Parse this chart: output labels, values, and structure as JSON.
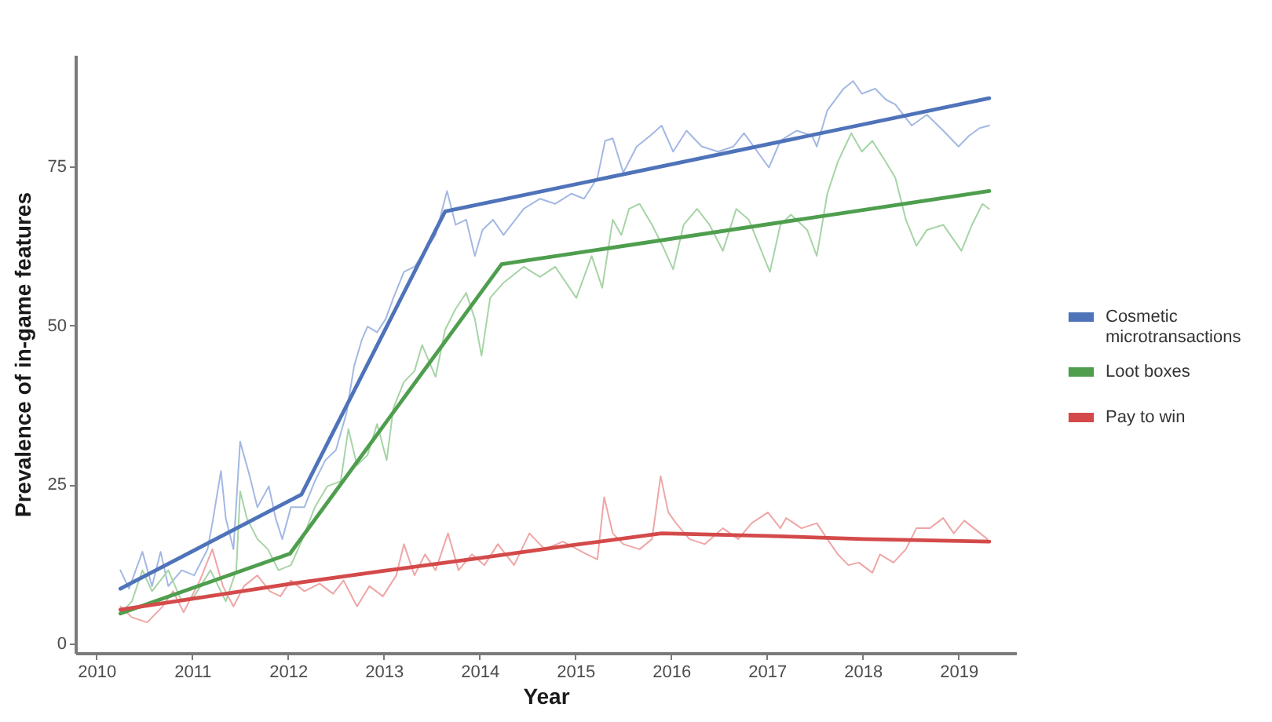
{
  "chart_data": {
    "type": "line",
    "xlabel": "Year",
    "ylabel": "Prevalence of in-game features",
    "xlim": [
      2009.78,
      2019.6
    ],
    "xticks": [
      2010,
      2011,
      2012,
      2013,
      2014,
      2015,
      2016,
      2017,
      2018,
      2019
    ],
    "ylim": [
      -1.5,
      92.5
    ],
    "yticks": [
      0,
      25,
      50,
      75
    ],
    "grid": false,
    "legend": "right",
    "series": [
      {
        "color": "#a3b8e3",
        "x": [
          2010.25,
          2010.34,
          2010.48,
          2010.58,
          2010.67,
          2010.75,
          2010.89,
          2011.02,
          2011.16,
          2011.21,
          2011.3,
          2011.35,
          2011.43,
          2011.5,
          2011.6,
          2011.68,
          2011.8,
          2011.87,
          2011.94,
          2012.03,
          2012.17,
          2012.28,
          2012.39,
          2012.5,
          2012.61,
          2012.69,
          2012.77,
          2012.83,
          2012.93,
          2013.02,
          2013.1,
          2013.21,
          2013.32,
          2013.43,
          2013.54,
          2013.66,
          2013.75,
          2013.86,
          2013.95,
          2014.03,
          2014.14,
          2014.25,
          2014.46,
          2014.63,
          2014.79,
          2014.96,
          2015.09,
          2015.23,
          2015.31,
          2015.39,
          2015.5,
          2015.64,
          2015.78,
          2015.9,
          2016.02,
          2016.16,
          2016.32,
          2016.49,
          2016.65,
          2016.76,
          2016.9,
          2017.02,
          2017.14,
          2017.31,
          2017.47,
          2017.52,
          2017.63,
          2017.8,
          2017.9,
          2017.99,
          2018.13,
          2018.24,
          2018.34,
          2018.51,
          2018.67,
          2018.84,
          2019.0,
          2019.11,
          2019.22,
          2019.32
        ],
        "values": [
          11.5,
          8.6,
          14.4,
          9.0,
          14.4,
          9.0,
          11.5,
          10.7,
          14.8,
          18.9,
          27.1,
          19.7,
          14.8,
          31.7,
          26.3,
          21.4,
          24.7,
          19.7,
          16.4,
          21.4,
          21.4,
          25.5,
          28.8,
          30.4,
          36.2,
          43.6,
          47.7,
          49.8,
          48.9,
          51.0,
          54.3,
          58.4,
          59.2,
          61.7,
          64.2,
          71.1,
          65.8,
          66.6,
          60.9,
          65.0,
          66.6,
          64.2,
          68.3,
          69.9,
          69.1,
          70.7,
          69.9,
          73.2,
          79.0,
          79.4,
          74.0,
          78.1,
          79.8,
          81.4,
          77.3,
          80.6,
          78.1,
          77.3,
          78.1,
          80.2,
          77.3,
          74.8,
          79.0,
          80.6,
          79.8,
          78.1,
          83.8,
          87.2,
          88.4,
          86.4,
          87.2,
          85.5,
          84.7,
          81.4,
          83.1,
          80.6,
          78.1,
          79.8,
          81.0,
          81.4
        ]
      },
      {
        "color": "#a6d4a6",
        "x": [
          2010.25,
          2010.37,
          2010.48,
          2010.58,
          2010.75,
          2010.89,
          2011.02,
          2011.19,
          2011.35,
          2011.46,
          2011.5,
          2011.57,
          2011.68,
          2011.79,
          2011.9,
          2012.03,
          2012.14,
          2012.28,
          2012.41,
          2012.55,
          2012.63,
          2012.72,
          2012.83,
          2012.93,
          2013.03,
          2013.1,
          2013.21,
          2013.32,
          2013.4,
          2013.54,
          2013.64,
          2013.75,
          2013.86,
          2013.95,
          2014.02,
          2014.11,
          2014.25,
          2014.46,
          2014.63,
          2014.79,
          2015.01,
          2015.17,
          2015.28,
          2015.39,
          2015.48,
          2015.56,
          2015.67,
          2015.8,
          2015.91,
          2016.02,
          2016.13,
          2016.27,
          2016.4,
          2016.54,
          2016.68,
          2016.81,
          2016.92,
          2017.03,
          2017.14,
          2017.25,
          2017.42,
          2017.52,
          2017.63,
          2017.74,
          2017.88,
          2017.99,
          2018.1,
          2018.24,
          2018.34,
          2018.45,
          2018.56,
          2018.67,
          2018.84,
          2019.03,
          2019.14,
          2019.25,
          2019.32
        ],
        "values": [
          4.7,
          6.6,
          11.5,
          8.2,
          11.5,
          6.6,
          7.4,
          11.5,
          6.6,
          11.5,
          23.9,
          19.7,
          16.4,
          14.8,
          11.5,
          12.3,
          16.0,
          21.4,
          24.7,
          25.5,
          33.7,
          28.0,
          29.6,
          34.5,
          28.8,
          37.0,
          41.1,
          42.8,
          46.9,
          41.9,
          49.3,
          52.6,
          55.1,
          51.0,
          45.2,
          54.3,
          56.7,
          59.2,
          57.6,
          59.2,
          54.3,
          60.9,
          55.9,
          66.6,
          64.2,
          68.3,
          69.1,
          65.8,
          62.5,
          58.8,
          65.8,
          68.3,
          65.8,
          61.7,
          68.3,
          66.6,
          62.5,
          58.4,
          65.8,
          67.4,
          65.0,
          60.9,
          70.7,
          75.7,
          80.2,
          77.3,
          79.0,
          75.7,
          73.2,
          66.6,
          62.5,
          65.0,
          65.8,
          61.7,
          65.8,
          69.1,
          68.3
        ]
      },
      {
        "color": "#efa6a6",
        "x": [
          2010.25,
          2010.37,
          2010.53,
          2010.69,
          2010.8,
          2010.91,
          2011.08,
          2011.21,
          2011.32,
          2011.43,
          2011.54,
          2011.68,
          2011.81,
          2011.92,
          2012.03,
          2012.17,
          2012.33,
          2012.47,
          2012.58,
          2012.72,
          2012.85,
          2012.99,
          2013.13,
          2013.21,
          2013.32,
          2013.43,
          2013.54,
          2013.67,
          2013.78,
          2013.92,
          2014.05,
          2014.19,
          2014.36,
          2014.52,
          2014.68,
          2014.87,
          2015.12,
          2015.23,
          2015.3,
          2015.39,
          2015.5,
          2015.67,
          2015.8,
          2015.89,
          2015.97,
          2016.05,
          2016.19,
          2016.35,
          2016.54,
          2016.7,
          2016.84,
          2017.01,
          2017.14,
          2017.2,
          2017.36,
          2017.52,
          2017.63,
          2017.74,
          2017.85,
          2017.96,
          2018.1,
          2018.18,
          2018.32,
          2018.45,
          2018.56,
          2018.7,
          2018.84,
          2018.95,
          2019.06,
          2019.16,
          2019.3
        ],
        "values": [
          5.8,
          4.1,
          3.3,
          5.8,
          8.2,
          4.9,
          9.9,
          14.8,
          9.0,
          5.8,
          9.0,
          10.7,
          8.2,
          7.4,
          9.9,
          8.2,
          9.4,
          7.8,
          9.9,
          5.8,
          9.0,
          7.4,
          10.7,
          15.6,
          10.7,
          14.0,
          11.5,
          17.3,
          11.5,
          14.0,
          12.3,
          15.6,
          12.3,
          17.3,
          14.8,
          16.0,
          14.0,
          13.2,
          23.0,
          17.3,
          15.6,
          14.8,
          16.4,
          26.3,
          20.6,
          18.9,
          16.4,
          15.6,
          18.1,
          16.4,
          18.9,
          20.6,
          18.1,
          19.7,
          18.1,
          18.9,
          16.4,
          14.0,
          12.3,
          12.7,
          11.1,
          14.0,
          12.7,
          14.8,
          18.1,
          18.1,
          19.7,
          17.3,
          19.3,
          18.1,
          16.4
        ]
      },
      {
        "name": "Cosmetic microtransactions",
        "color": "#4f73b9",
        "x": [
          2010.25,
          2012.14,
          2013.64,
          2019.32
        ],
        "values": [
          8.6,
          23.4,
          67.9,
          85.7
        ]
      },
      {
        "name": "Loot boxes",
        "color": "#4e9e4e",
        "x": [
          2010.25,
          2012.02,
          2014.23,
          2019.32
        ],
        "values": [
          4.7,
          14.1,
          59.6,
          71.1
        ]
      },
      {
        "name": "Pay to win",
        "color": "#d44a4a",
        "x": [
          2010.25,
          2012.0,
          2013.0,
          2014.0,
          2015.0,
          2015.9,
          2017.0,
          2018.0,
          2019.32
        ],
        "values": [
          5.3,
          9.3,
          11.4,
          13.4,
          15.5,
          17.3,
          16.9,
          16.4,
          16.0
        ]
      }
    ]
  }
}
